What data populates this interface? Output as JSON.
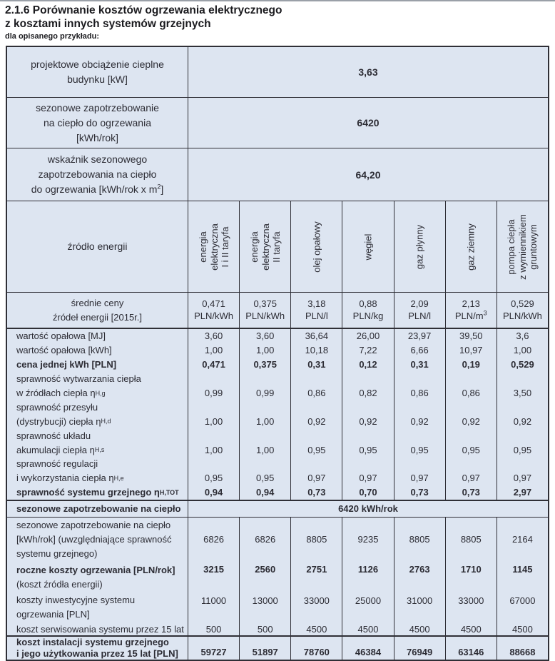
{
  "colors": {
    "table_bg": "#dde5f1",
    "border": "#2f2f36",
    "text": "#2c2c34"
  },
  "page": {
    "title_line1": "2.1.6 Porównanie kosztów ogrzewania elektrycznego",
    "title_line2": "z kosztami innych systemów grzejnych",
    "subtitle": "dla opisanego przykładu:"
  },
  "table": {
    "summary_rows": [
      {
        "label_lines": [
          "projektowe obciążenie cieplne",
          "budynku [kW]"
        ],
        "value": "3,63"
      },
      {
        "label_lines": [
          "sezonowe zapotrzebowanie",
          "na ciepło do ogrzewania",
          "[kWh/rok]"
        ],
        "value": "6420"
      },
      {
        "label_lines": [
          "wskaźnik sezonowego",
          "zapotrzebowania na ciepło",
          "do ogrzewania [kWh/rok x m"
        ],
        "label_sup": "2",
        "label_close": "]",
        "value": "64,20"
      }
    ],
    "source_header": {
      "label": "źródło energii",
      "columns": [
        {
          "lines": [
            "energia",
            "elektryczna",
            "I i II taryfa"
          ]
        },
        {
          "lines": [
            "energia",
            "elektryczna",
            "II taryfa"
          ]
        },
        {
          "lines": [
            "olej opałowy"
          ]
        },
        {
          "lines": [
            "węgiel"
          ]
        },
        {
          "lines": [
            "gaz płynny"
          ]
        },
        {
          "lines": [
            "gaz ziemny"
          ]
        },
        {
          "lines": [
            "pompa ciepła",
            "z wymiennikiem",
            "gruntowym"
          ]
        }
      ]
    },
    "prices_row": {
      "label_lines": [
        "średnie ceny",
        "źródeł energii [2015r.]"
      ],
      "cells": [
        {
          "value": "0,471",
          "unit": "PLN/kWh",
          "unit_sup": ""
        },
        {
          "value": "0,375",
          "unit": "PLN/kWh",
          "unit_sup": ""
        },
        {
          "value": "3,18",
          "unit": "PLN/l",
          "unit_sup": ""
        },
        {
          "value": "0,88",
          "unit": "PLN/kg",
          "unit_sup": ""
        },
        {
          "value": "2,09",
          "unit": "PLN/l",
          "unit_sup": ""
        },
        {
          "value": "2,13",
          "unit": "PLN/m",
          "unit_sup": "3"
        },
        {
          "value": "0,529",
          "unit": "PLN/kWh",
          "unit_sup": ""
        }
      ]
    },
    "efficiency_block": [
      {
        "label": "wartość opałowa [MJ]",
        "label_sub": "",
        "bold": false,
        "values": [
          "3,60",
          "3,60",
          "36,64",
          "26,00",
          "23,97",
          "39,50",
          "3,6"
        ]
      },
      {
        "label": "wartość opałowa [kWh]",
        "label_sub": "",
        "bold": false,
        "values": [
          "1,00",
          "1,00",
          "10,18",
          "7,22",
          "6,66",
          "10,97",
          "1,00"
        ]
      },
      {
        "label": "cena jednej kWh [PLN]",
        "label_sub": "",
        "bold": true,
        "values": [
          "0,471",
          "0,375",
          "0,31",
          "0,12",
          "0,31",
          "0,19",
          "0,529"
        ]
      },
      {
        "label": "sprawność wytwarzania ciepła",
        "label_sub": "",
        "bold": false,
        "values": null
      },
      {
        "label": "w źródłach ciepła η",
        "label_sub": "H,g",
        "bold": false,
        "values": [
          "0,99",
          "0,99",
          "0,86",
          "0,82",
          "0,86",
          "0,86",
          "3,50"
        ]
      },
      {
        "label": "sprawność przesyłu",
        "label_sub": "",
        "bold": false,
        "values": null
      },
      {
        "label": "(dystrybucji) ciepła η",
        "label_sub": "H,d",
        "bold": false,
        "values": [
          "1,00",
          "1,00",
          "0,92",
          "0,92",
          "0,92",
          "0,92",
          "0,92"
        ]
      },
      {
        "label": "sprawność układu",
        "label_sub": "",
        "bold": false,
        "values": null
      },
      {
        "label": "akumulacji ciepła η",
        "label_sub": "H,s",
        "bold": false,
        "values": [
          "1,00",
          "1,00",
          "0,95",
          "0,95",
          "0,95",
          "0,95",
          "0,95"
        ]
      },
      {
        "label": "sprawność regulacji",
        "label_sub": "",
        "bold": false,
        "values": null
      },
      {
        "label": "i wykorzystania ciepła η",
        "label_sub": "H,e",
        "bold": false,
        "values": [
          "0,95",
          "0,95",
          "0,97",
          "0,97",
          "0,97",
          "0,97",
          "0,97"
        ]
      },
      {
        "label": "sprawność systemu grzejnego η",
        "label_sub": "H,TOT",
        "bold": true,
        "values": [
          "0,94",
          "0,94",
          "0,73",
          "0,70",
          "0,73",
          "0,73",
          "2,97"
        ]
      }
    ],
    "seasonal_total_row": {
      "label": "sezonowe zapotrzebowanie na ciepło",
      "value": "6420 kWh/rok"
    },
    "cost_rows": [
      {
        "label_lines": [
          "sezonowe zapotrzebowanie na ciepło",
          "[kWh/rok] (uwzględniające sprawność",
          "systemu grzejnego)"
        ],
        "bold_first_line": false,
        "bold_values": false,
        "align": "center",
        "values": [
          "6826",
          "6826",
          "8805",
          "9235",
          "8805",
          "8805",
          "2164"
        ]
      },
      {
        "label_lines": [
          "roczne koszty ogrzewania [PLN/rok]",
          "(koszt źródła energii)"
        ],
        "bold_first_line": true,
        "bold_values": true,
        "align": "top",
        "values": [
          "3215",
          "2560",
          "2751",
          "1126",
          "2763",
          "1710",
          "1145"
        ]
      },
      {
        "label_lines": [
          "koszty inwestycyjne systemu",
          "ogrzewania [PLN]"
        ],
        "bold_first_line": false,
        "bold_values": false,
        "align": "top",
        "values": [
          "11000",
          "13000",
          "33000",
          "25000",
          "31000",
          "33000",
          "67000"
        ]
      },
      {
        "label_lines": [
          "koszt serwisowania systemu przez 15 lat"
        ],
        "bold_first_line": false,
        "bold_values": false,
        "align": "center",
        "values": [
          "500",
          "500",
          "4500",
          "4500",
          "4500",
          "4500",
          "4500"
        ]
      }
    ],
    "total_row": {
      "label_lines": [
        "koszt instalacji systemu grzejnego",
        "i jego użytkowania przez 15 lat [PLN]"
      ],
      "values": [
        "59727",
        "51897",
        "78760",
        "46384",
        "76949",
        "63146",
        "88668"
      ]
    }
  }
}
